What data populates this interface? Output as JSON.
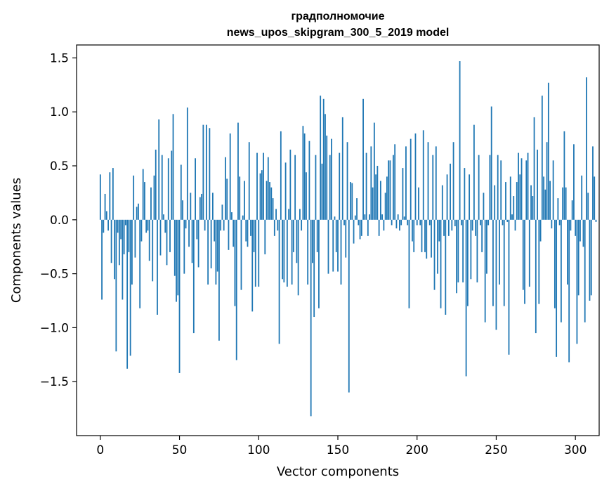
{
  "chart_data": {
    "type": "bar",
    "title_line1": "градполномочие",
    "title_line2": "news_upos_skipgram_300_5_2019 model",
    "xlabel": "Vector components",
    "ylabel": "Components values",
    "xlim": [
      -15,
      315
    ],
    "ylim": [
      -2.0,
      1.62
    ],
    "xticks": [
      0,
      50,
      100,
      150,
      200,
      250,
      300
    ],
    "xtick_labels": [
      "0",
      "50",
      "100",
      "150",
      "200",
      "250",
      "300"
    ],
    "yticks": [
      -1.5,
      -1.0,
      -0.5,
      0.0,
      0.5,
      1.0,
      1.5
    ],
    "ytick_labels": [
      "−1.5",
      "−1.0",
      "−0.5",
      "0.0",
      "0.5",
      "1.0",
      "1.5"
    ],
    "bar_color": "#1f77b4",
    "values": [
      0.42,
      -0.74,
      -0.12,
      0.24,
      0.08,
      -0.1,
      0.44,
      -0.4,
      0.48,
      -0.55,
      -1.22,
      -0.12,
      -0.42,
      -0.18,
      -0.74,
      -0.32,
      -0.05,
      -1.38,
      -0.3,
      -1.26,
      -0.6,
      0.41,
      -0.35,
      0.12,
      0.15,
      -0.82,
      -0.2,
      0.47,
      0.35,
      -0.12,
      -0.1,
      -0.38,
      0.3,
      -0.57,
      0.41,
      0.65,
      -0.88,
      0.93,
      -0.33,
      0.6,
      0.05,
      -0.12,
      -0.42,
      0.57,
      -0.3,
      0.64,
      0.98,
      -0.52,
      -0.76,
      -0.7,
      -1.42,
      0.51,
      0.18,
      -0.5,
      -0.08,
      1.04,
      -0.25,
      0.25,
      -0.4,
      -1.05,
      0.57,
      -0.18,
      -0.44,
      0.21,
      0.24,
      0.88,
      -0.1,
      0.88,
      -0.6,
      0.85,
      -0.45,
      0.25,
      -0.2,
      -0.6,
      -0.48,
      -1.12,
      -0.1,
      0.14,
      -0.1,
      0.58,
      0.38,
      -0.28,
      0.8,
      0.07,
      -0.25,
      -0.8,
      -1.3,
      0.9,
      0.4,
      -0.65,
      0.04,
      0.36,
      -0.2,
      -0.25,
      0.72,
      -0.15,
      -0.85,
      -0.3,
      -0.62,
      0.62,
      -0.62,
      0.43,
      0.46,
      0.62,
      -0.32,
      0.36,
      0.58,
      0.35,
      0.3,
      0.2,
      -0.15,
      0.1,
      -0.1,
      -1.15,
      0.82,
      -0.55,
      -0.58,
      0.53,
      -0.62,
      0.1,
      0.65,
      -0.6,
      -0.3,
      0.6,
      -0.4,
      -0.7,
      0.1,
      -0.1,
      0.87,
      0.8,
      0.44,
      -0.6,
      0.73,
      -1.82,
      -0.4,
      -0.9,
      0.6,
      -0.3,
      -0.82,
      1.15,
      0.52,
      1.12,
      0.98,
      0.78,
      -0.5,
      0.6,
      0.75,
      -0.48,
      0.03,
      -0.3,
      -0.48,
      0.62,
      -0.6,
      0.95,
      -0.05,
      -0.35,
      0.72,
      -1.6,
      0.35,
      0.34,
      -0.22,
      0.04,
      0.2,
      -0.05,
      -0.18,
      -0.15,
      1.12,
      0.05,
      0.62,
      -0.15,
      0.05,
      0.68,
      0.3,
      0.9,
      0.42,
      0.5,
      -0.15,
      0.36,
      0.05,
      -0.1,
      0.25,
      0.4,
      0.55,
      0.55,
      -0.05,
      0.6,
      0.7,
      -0.08,
      0.05,
      -0.1,
      -0.05,
      0.48,
      0.03,
      0.68,
      -0.05,
      -0.82,
      0.75,
      -0.2,
      -0.3,
      0.8,
      -0.05,
      0.3,
      -0.05,
      -0.3,
      0.83,
      -0.3,
      -0.36,
      0.72,
      -0.05,
      -0.35,
      0.6,
      -0.65,
      0.68,
      -0.5,
      -0.2,
      -0.82,
      0.32,
      -0.15,
      -0.88,
      0.42,
      -0.15,
      0.52,
      -0.1,
      0.72,
      -0.06,
      -0.68,
      -0.58,
      1.47,
      -0.05,
      -0.58,
      0.48,
      -1.45,
      -0.8,
      0.42,
      -0.55,
      -0.1,
      0.88,
      -0.15,
      -0.58,
      0.6,
      -0.05,
      -0.3,
      0.25,
      -0.95,
      -0.5,
      -0.05,
      0.6,
      1.05,
      -0.8,
      0.32,
      -1.02,
      0.6,
      -0.6,
      0.55,
      -0.05,
      -0.8,
      0.35,
      -0.02,
      -1.25,
      0.4,
      0.05,
      0.22,
      -0.1,
      0.35,
      0.62,
      0.42,
      0.57,
      -0.65,
      -0.78,
      0.55,
      0.62,
      -0.62,
      0.32,
      0.22,
      0.95,
      -1.05,
      0.65,
      -0.78,
      -0.2,
      1.15,
      0.4,
      0.28,
      0.72,
      1.27,
      0.36,
      -0.08,
      0.55,
      -0.82,
      -1.27,
      0.2,
      -0.05,
      -0.95,
      0.3,
      0.82,
      0.3,
      -0.6,
      -1.32,
      -0.1,
      0.18,
      0.7,
      -0.15,
      -1.15,
      -0.7,
      -0.2,
      0.41,
      -0.25,
      -0.95,
      1.32,
      0.25,
      -0.75,
      -0.7,
      0.68,
      0.4,
      -0.02
    ]
  }
}
